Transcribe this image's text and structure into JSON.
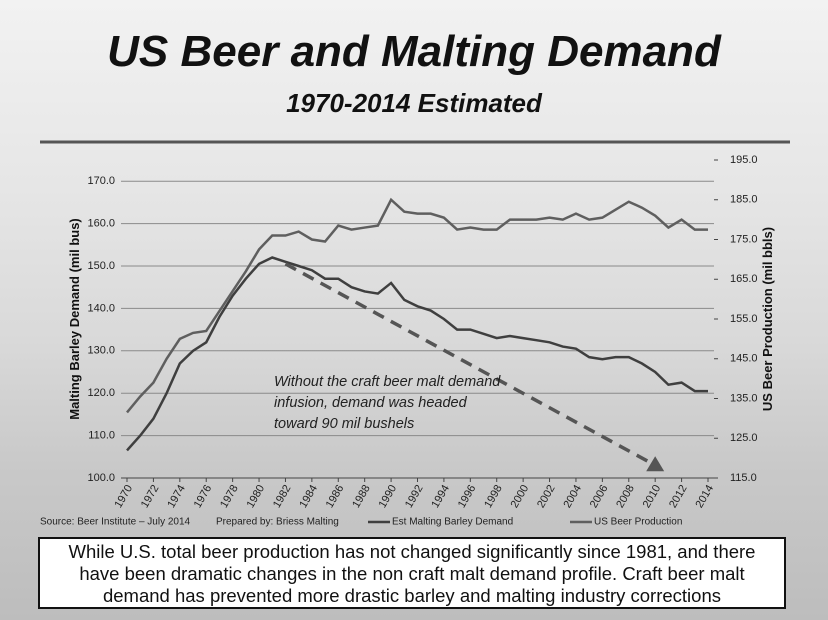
{
  "chart_data": {
    "type": "line",
    "title": "US Beer and Malting Demand",
    "subtitle": "1970-2014 Estimated",
    "y_label": "Malting Barley Demand (mil bus)",
    "y2_label": "US Beer Production (mil bbls)",
    "source": "Source: Beer Institute – July 2014",
    "prepared_by": "Prepared by: Briess Malting",
    "annotation": "Without the craft beer malt demand infusion, demand was headed toward 90 mil bushels",
    "x": [
      1970,
      1971,
      1972,
      1973,
      1974,
      1975,
      1976,
      1977,
      1978,
      1979,
      1980,
      1981,
      1982,
      1983,
      1984,
      1985,
      1986,
      1987,
      1988,
      1989,
      1990,
      1991,
      1992,
      1993,
      1994,
      1995,
      1996,
      1997,
      1998,
      1999,
      2000,
      2001,
      2002,
      2003,
      2004,
      2005,
      2006,
      2007,
      2008,
      2009,
      2010,
      2011,
      2012,
      2013,
      2014
    ],
    "xlim": [
      1970,
      2014
    ],
    "xticks": [
      1970,
      1972,
      1974,
      1976,
      1978,
      1980,
      1982,
      1984,
      1986,
      1988,
      1990,
      1992,
      1994,
      1996,
      1998,
      2000,
      2002,
      2004,
      2006,
      2008,
      2010,
      2012,
      2014
    ],
    "ylim": [
      100,
      175
    ],
    "yticks": [
      {
        "value": 100,
        "label": "100.0"
      },
      {
        "value": 110,
        "label": "110.0"
      },
      {
        "value": 120,
        "label": "120.0"
      },
      {
        "value": 130,
        "label": "130.0"
      },
      {
        "value": 140,
        "label": "140.0"
      },
      {
        "value": 150,
        "label": "150.0"
      },
      {
        "value": 160,
        "label": "160.0"
      },
      {
        "value": 170,
        "label": "170.0"
      }
    ],
    "y2lim": [
      115,
      195
    ],
    "y2ticks": [
      {
        "value": 115,
        "label": "115.0"
      },
      {
        "value": 125,
        "label": "125.0"
      },
      {
        "value": 135,
        "label": "135.0"
      },
      {
        "value": 145,
        "label": "145.0"
      },
      {
        "value": 155,
        "label": "155.0"
      },
      {
        "value": 165,
        "label": "165.0"
      },
      {
        "value": 175,
        "label": "175.0"
      },
      {
        "value": 185,
        "label": "185.0"
      },
      {
        "value": 195,
        "label": "195.0"
      }
    ],
    "grid": true,
    "series": [
      {
        "name": "Est Malting  Barley Demand",
        "color": "#3f3f3f",
        "values": [
          106.5,
          110,
          114,
          120,
          127,
          130,
          132,
          138,
          143,
          147,
          150.5,
          152,
          151,
          150,
          149,
          147,
          147,
          145,
          144,
          143.5,
          146,
          142,
          140.5,
          139.5,
          137.5,
          135,
          135,
          134,
          133,
          133.5,
          133,
          132.5,
          132,
          131,
          130.5,
          128.5,
          128,
          128.5,
          128.5,
          127,
          125,
          122,
          122.5,
          120.5,
          120.5
        ]
      },
      {
        "name": "US Beer Production",
        "color": "#5f5f5f",
        "axis": "y2",
        "values": [
          131.5,
          135.5,
          139,
          145,
          150,
          151.5,
          152,
          157,
          162,
          167,
          172.5,
          176,
          176,
          177,
          175,
          174.5,
          178.5,
          177.5,
          178,
          178.5,
          185,
          182,
          181.5,
          181.5,
          180.5,
          177.5,
          178,
          177.5,
          177.5,
          180,
          180,
          180,
          180.5,
          180,
          181.5,
          180,
          180.5,
          182.5,
          184.5,
          183,
          181,
          178,
          180,
          177.5,
          177.5
        ]
      }
    ],
    "trend": {
      "x": [
        1982,
        2010
      ],
      "values": [
        150.5,
        103
      ],
      "color": "#555555"
    }
  },
  "footer": "While U.S. total beer production has not changed significantly since 1981, and there have been dramatic changes in the non craft malt demand profile. Craft beer malt demand has prevented more drastic barley and malting industry corrections"
}
